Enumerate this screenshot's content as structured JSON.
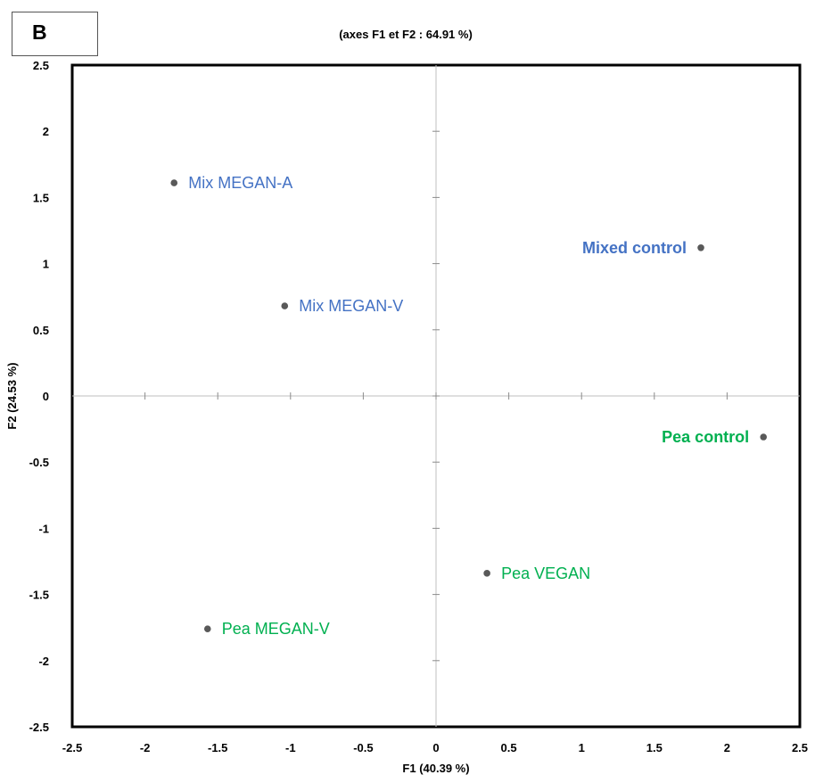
{
  "panel": {
    "letter": "B"
  },
  "chart_data": {
    "type": "scatter",
    "title": "(axes F1 et F2 : 64.91 %)",
    "xlabel": "F1 (40.39 %)",
    "ylabel": "F2 (24.53 %)",
    "xlim": [
      -2.5,
      2.5
    ],
    "ylim": [
      -2.5,
      2.5
    ],
    "xticks": [
      -2.5,
      -2,
      -1.5,
      -1,
      -0.5,
      0,
      0.5,
      1,
      1.5,
      2,
      2.5
    ],
    "yticks": [
      -2.5,
      -2,
      -1.5,
      -1,
      -0.5,
      0,
      0.5,
      1,
      1.5,
      2,
      2.5
    ],
    "grid": false,
    "marker_color": "#595959",
    "points": [
      {
        "label": "Mix MEGAN-A",
        "x": -1.8,
        "y": 1.61,
        "color": "#4472C4",
        "bold": false,
        "label_side": "right"
      },
      {
        "label": "Mixed control",
        "x": 1.82,
        "y": 1.12,
        "color": "#4472C4",
        "bold": true,
        "label_side": "left"
      },
      {
        "label": "Mix MEGAN-V",
        "x": -1.04,
        "y": 0.68,
        "color": "#4472C4",
        "bold": false,
        "label_side": "right"
      },
      {
        "label": "Pea control",
        "x": 2.25,
        "y": -0.31,
        "color": "#00B050",
        "bold": true,
        "label_side": "left"
      },
      {
        "label": "Pea VEGAN",
        "x": 0.35,
        "y": -1.34,
        "color": "#00B050",
        "bold": false,
        "label_side": "right"
      },
      {
        "label": "Pea MEGAN-V",
        "x": -1.57,
        "y": -1.76,
        "color": "#00B050",
        "bold": false,
        "label_side": "right"
      }
    ]
  }
}
